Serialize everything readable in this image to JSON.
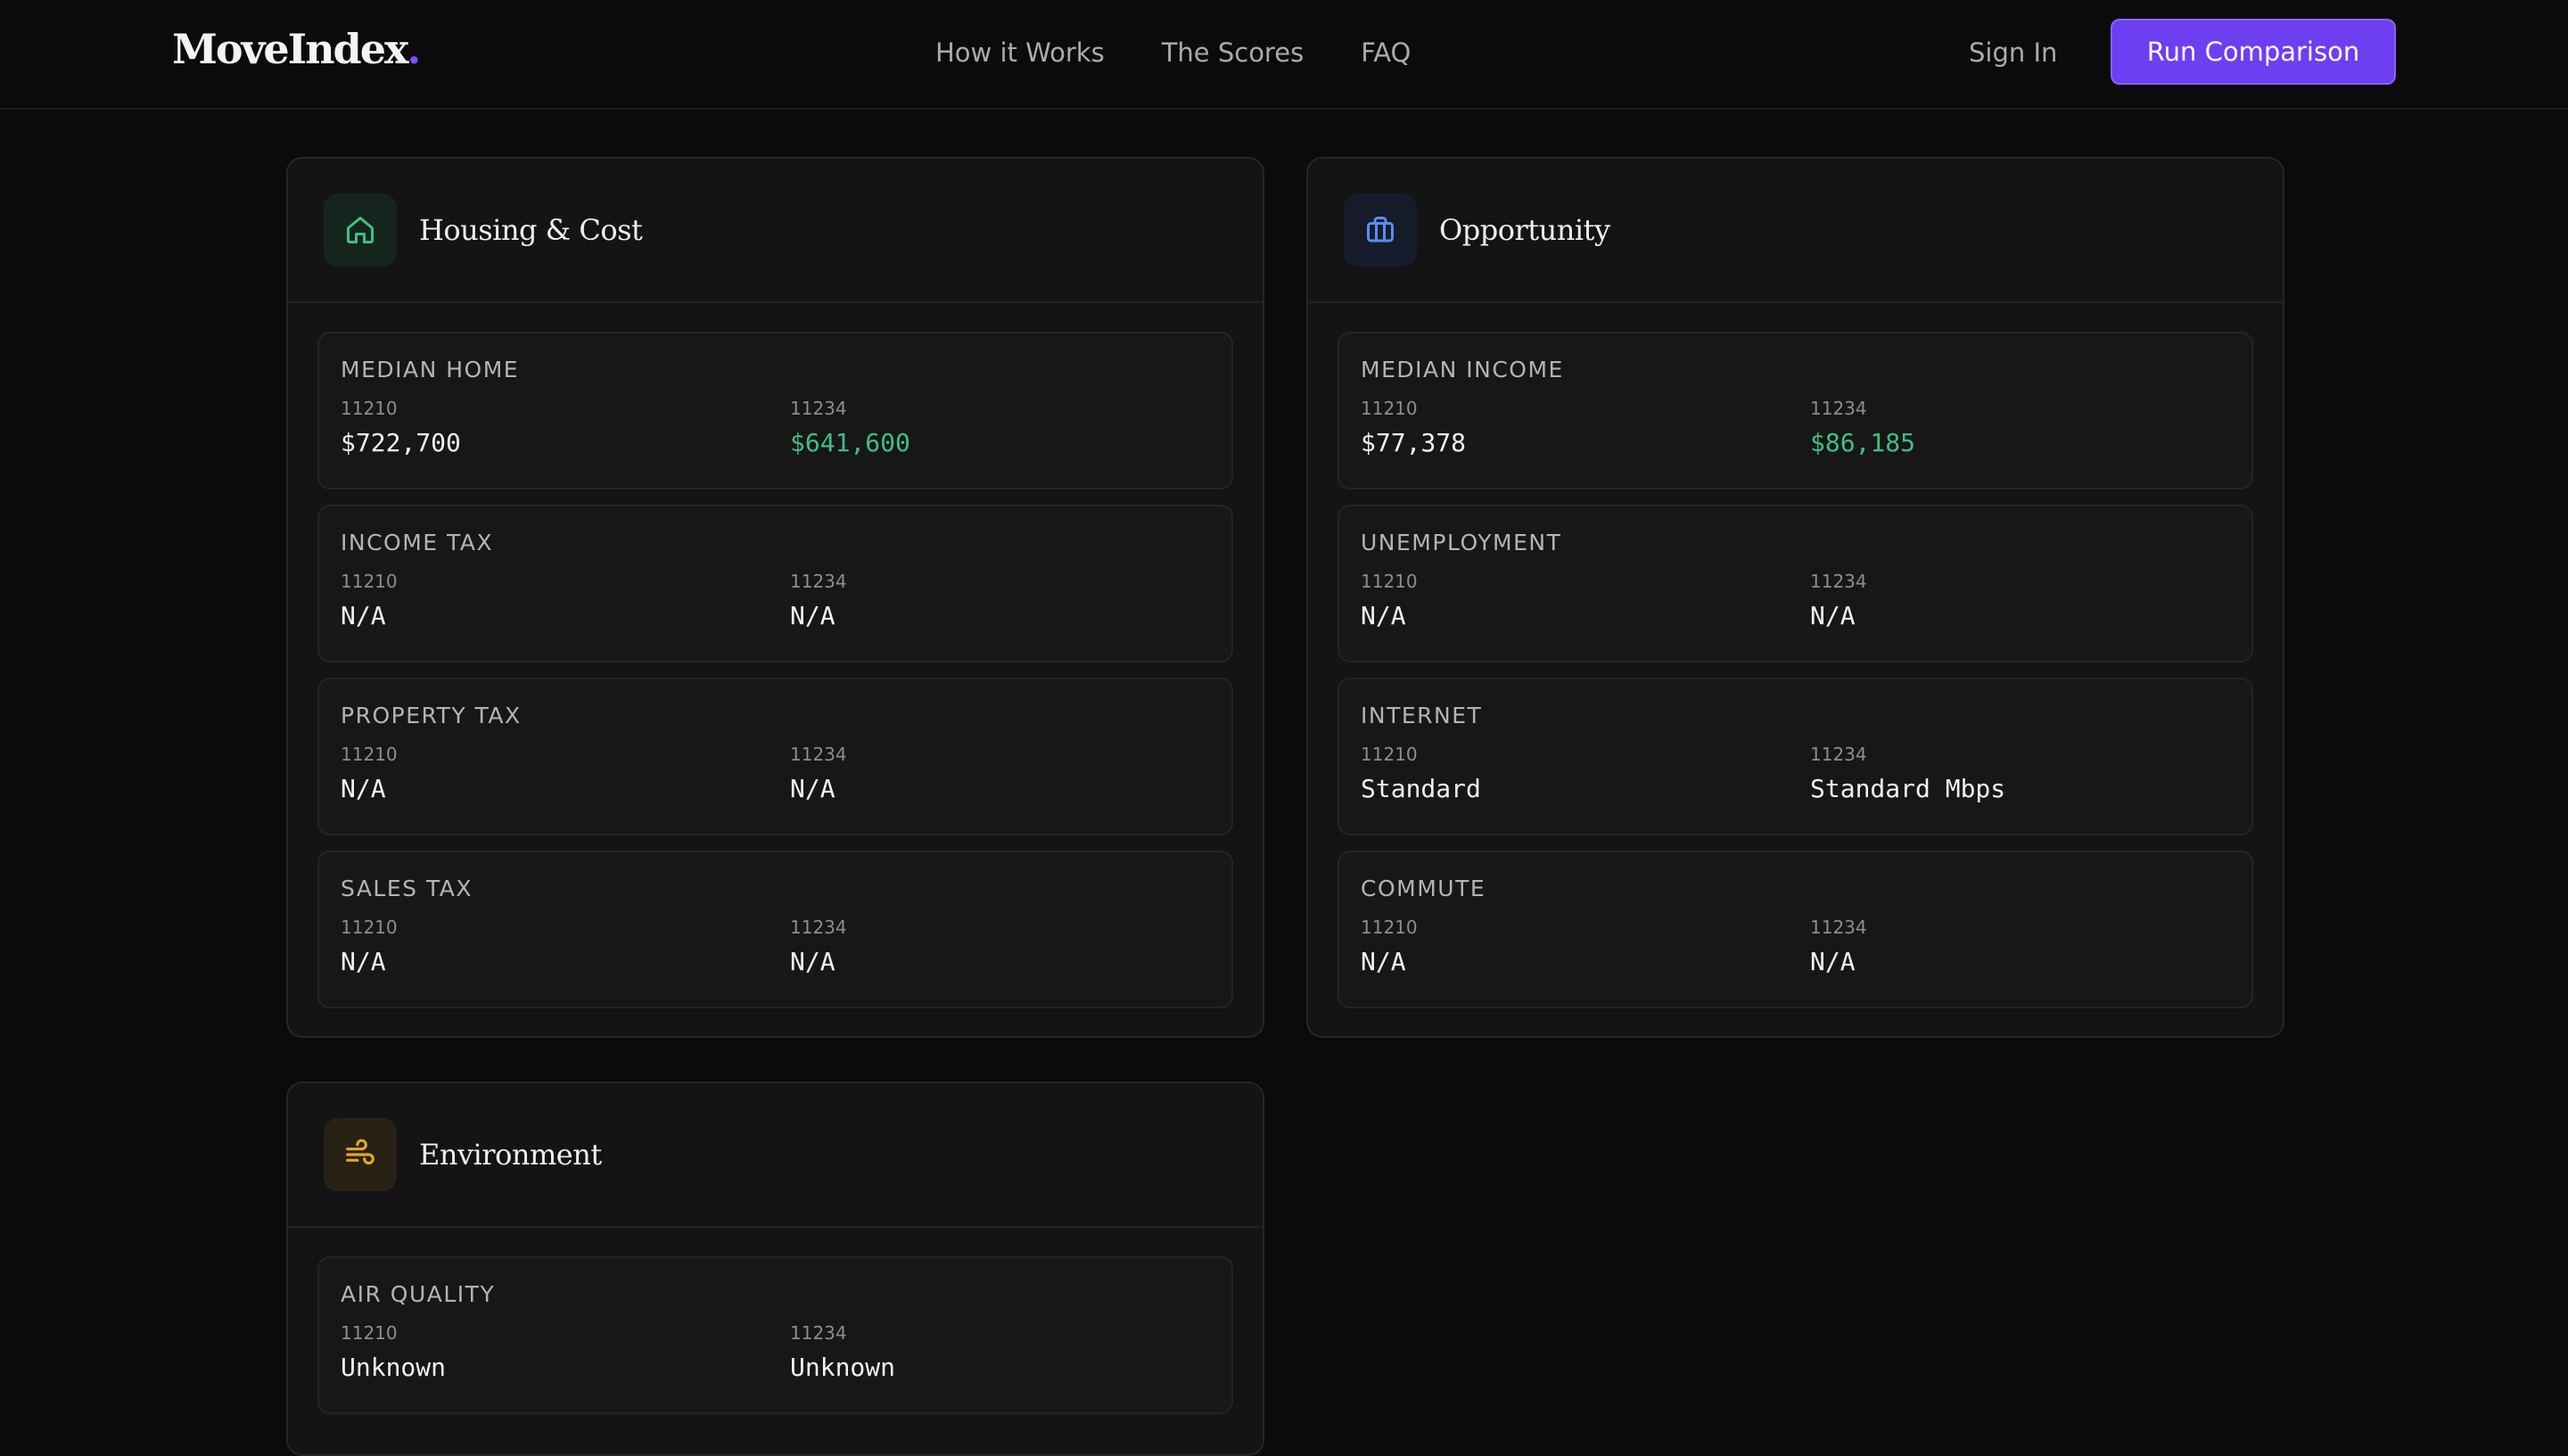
{
  "nav": {
    "logo": "MoveIndex",
    "logo_dot": ".",
    "links": [
      "How it Works",
      "The Scores",
      "FAQ"
    ],
    "sign_in": "Sign In",
    "cta": "Run Comparison"
  },
  "colors": {
    "accent": "#6d3ff0",
    "better_value": "#3fbf83",
    "housing_icon": "#3fbf83",
    "opportunity_icon": "#5b8def",
    "environment_icon": "#e0a82e"
  },
  "zips": {
    "a": "11210",
    "b": "11234"
  },
  "cards": {
    "housing": {
      "title": "Housing & Cost",
      "icon": "home-icon",
      "metrics": [
        {
          "label": "MEDIAN HOME",
          "a": "$722,700",
          "b": "$641,600",
          "better": "b"
        },
        {
          "label": "INCOME TAX",
          "a": "N/A",
          "b": "N/A"
        },
        {
          "label": "PROPERTY TAX",
          "a": "N/A",
          "b": "N/A"
        },
        {
          "label": "SALES TAX",
          "a": "N/A",
          "b": "N/A"
        }
      ]
    },
    "opportunity": {
      "title": "Opportunity",
      "icon": "briefcase-icon",
      "metrics": [
        {
          "label": "MEDIAN INCOME",
          "a": "$77,378",
          "b": "$86,185",
          "better": "b"
        },
        {
          "label": "UNEMPLOYMENT",
          "a": "N/A",
          "b": "N/A"
        },
        {
          "label": "INTERNET",
          "a": "Standard",
          "b": "Standard Mbps"
        },
        {
          "label": "COMMUTE",
          "a": "N/A",
          "b": "N/A"
        }
      ]
    },
    "environment": {
      "title": "Environment",
      "icon": "wind-icon",
      "metrics": [
        {
          "label": "AIR QUALITY",
          "a": "Unknown",
          "b": "Unknown"
        }
      ]
    }
  }
}
